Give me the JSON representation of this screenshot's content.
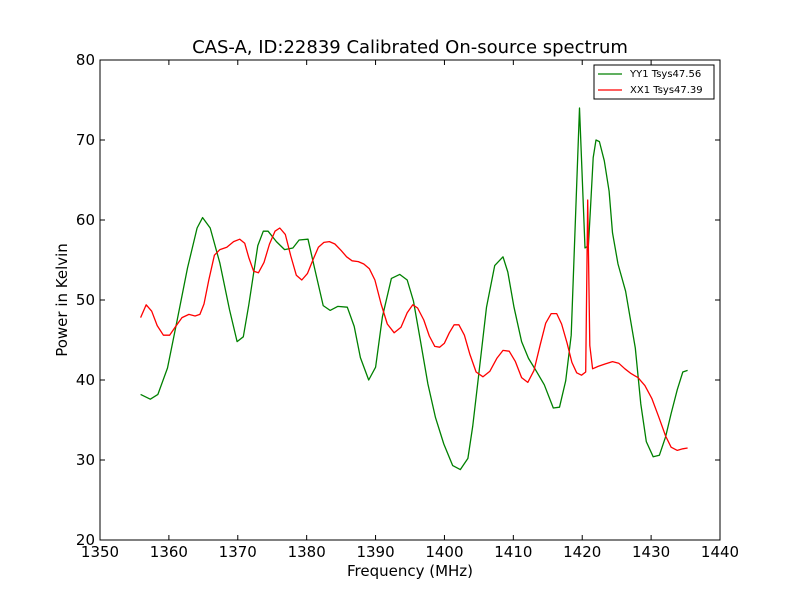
{
  "chart_data": {
    "type": "line",
    "title": "CAS-A, ID:22839 Calibrated On-source spectrum",
    "xlabel": "Frequency (MHz)",
    "ylabel": "Power in Kelvin",
    "xlim": [
      1350,
      1440
    ],
    "ylim": [
      20,
      80
    ],
    "xticks": [
      1350,
      1360,
      1370,
      1380,
      1390,
      1400,
      1410,
      1420,
      1430,
      1440
    ],
    "yticks": [
      20,
      30,
      40,
      50,
      60,
      70,
      80
    ],
    "grid": false,
    "legend_position": "top-right",
    "series": [
      {
        "name": "YY1 Tsys47.56",
        "color": "#008000",
        "x": [
          1355.9,
          1357.3,
          1358.4,
          1359.8,
          1361.2,
          1362.7,
          1364.1,
          1364.9,
          1366.0,
          1367.4,
          1368.8,
          1369.9,
          1370.8,
          1371.6,
          1372.9,
          1373.7,
          1374.4,
          1375.6,
          1376.8,
          1378.0,
          1378.9,
          1380.2,
          1381.2,
          1382.4,
          1383.4,
          1384.5,
          1385.9,
          1386.9,
          1387.8,
          1389.0,
          1390.0,
          1391.0,
          1392.3,
          1393.5,
          1394.6,
          1395.5,
          1396.5,
          1397.6,
          1398.7,
          1399.9,
          1401.2,
          1402.3,
          1403.4,
          1404.1,
          1404.9,
          1406.1,
          1407.3,
          1408.5,
          1409.2,
          1410.1,
          1411.2,
          1412.2,
          1413.2,
          1414.5,
          1415.8,
          1416.7,
          1417.6,
          1418.4,
          1419.6,
          1420.4,
          1420.9,
          1421.2,
          1421.6,
          1422.0,
          1422.5,
          1423.2,
          1423.9,
          1424.4,
          1425.2,
          1426.3,
          1427.7,
          1428.5,
          1429.3,
          1430.3,
          1431.2,
          1432.1,
          1432.9,
          1433.8,
          1434.6,
          1435.3
        ],
        "values": [
          38.2,
          37.6,
          38.2,
          41.5,
          47.5,
          54.0,
          59.0,
          60.3,
          59.0,
          54.6,
          48.8,
          44.8,
          45.4,
          49.4,
          56.8,
          58.6,
          58.6,
          57.3,
          56.3,
          56.5,
          57.5,
          57.6,
          53.8,
          49.3,
          48.7,
          49.2,
          49.1,
          46.7,
          42.8,
          40.0,
          41.6,
          47.9,
          52.7,
          53.2,
          52.5,
          49.9,
          45.0,
          39.5,
          35.3,
          32.0,
          29.3,
          28.8,
          30.2,
          34.2,
          40.1,
          49.1,
          54.3,
          55.4,
          53.5,
          49.1,
          44.8,
          42.7,
          41.3,
          39.4,
          36.5,
          36.6,
          39.9,
          45.6,
          74.0,
          56.5,
          56.8,
          61.5,
          67.8,
          70.0,
          69.8,
          67.4,
          63.6,
          58.4,
          54.5,
          51.1,
          44.0,
          37.0,
          32.3,
          30.4,
          30.6,
          32.9,
          35.8,
          38.8,
          41.0,
          41.2
        ],
        "comment_note_unused": ""
      },
      {
        "name": "XX1 Tsys47.39",
        "color": "#ff0000",
        "x": [
          1355.9,
          1356.7,
          1357.5,
          1358.3,
          1359.2,
          1360.1,
          1360.9,
          1361.9,
          1362.9,
          1363.8,
          1364.5,
          1365.1,
          1365.8,
          1366.6,
          1367.4,
          1368.4,
          1369.4,
          1370.3,
          1371.0,
          1371.6,
          1372.3,
          1373.0,
          1373.8,
          1374.6,
          1375.4,
          1376.1,
          1376.9,
          1377.7,
          1378.5,
          1379.3,
          1380.1,
          1380.9,
          1381.7,
          1382.5,
          1383.3,
          1384.1,
          1385.0,
          1385.8,
          1386.6,
          1387.5,
          1388.3,
          1389.1,
          1389.9,
          1390.8,
          1391.7,
          1392.7,
          1393.7,
          1394.6,
          1395.4,
          1396.1,
          1397.0,
          1397.8,
          1398.6,
          1399.3,
          1400.0,
          1400.7,
          1401.4,
          1402.1,
          1402.9,
          1403.7,
          1404.6,
          1405.6,
          1406.6,
          1407.6,
          1408.5,
          1409.4,
          1410.3,
          1411.2,
          1412.1,
          1413.0,
          1413.9,
          1414.7,
          1415.5,
          1416.3,
          1417.0,
          1417.8,
          1418.5,
          1419.2,
          1419.9,
          1420.5,
          1420.8,
          1421.1,
          1421.5,
          1422.3,
          1423.3,
          1424.4,
          1425.3,
          1426.2,
          1427.1,
          1428.1,
          1429.1,
          1430.1,
          1431.1,
          1432.1,
          1432.9,
          1433.8,
          1434.6,
          1435.3
        ],
        "values": [
          47.8,
          49.4,
          48.6,
          46.8,
          45.6,
          45.6,
          46.6,
          47.8,
          48.2,
          48.0,
          48.2,
          49.5,
          52.5,
          55.6,
          56.3,
          56.6,
          57.3,
          57.6,
          57.1,
          55.3,
          53.6,
          53.4,
          54.7,
          57.0,
          58.6,
          59.0,
          58.2,
          55.5,
          53.1,
          52.5,
          53.3,
          55.0,
          56.6,
          57.2,
          57.3,
          57.0,
          56.2,
          55.4,
          54.9,
          54.8,
          54.5,
          53.9,
          52.5,
          49.5,
          47.0,
          45.9,
          46.6,
          48.4,
          49.4,
          49.0,
          47.5,
          45.5,
          44.2,
          44.1,
          44.6,
          45.9,
          46.9,
          46.9,
          45.6,
          43.2,
          41.0,
          40.4,
          41.1,
          42.7,
          43.7,
          43.6,
          42.3,
          40.3,
          39.7,
          41.2,
          44.4,
          47.1,
          48.3,
          48.3,
          47.0,
          44.6,
          42.2,
          40.9,
          40.6,
          41.0,
          62.5,
          44.3,
          41.4,
          41.7,
          42.0,
          42.3,
          42.1,
          41.4,
          40.8,
          40.3,
          39.3,
          37.7,
          35.4,
          33.0,
          31.6,
          31.2,
          31.4,
          31.5
        ]
      }
    ]
  }
}
